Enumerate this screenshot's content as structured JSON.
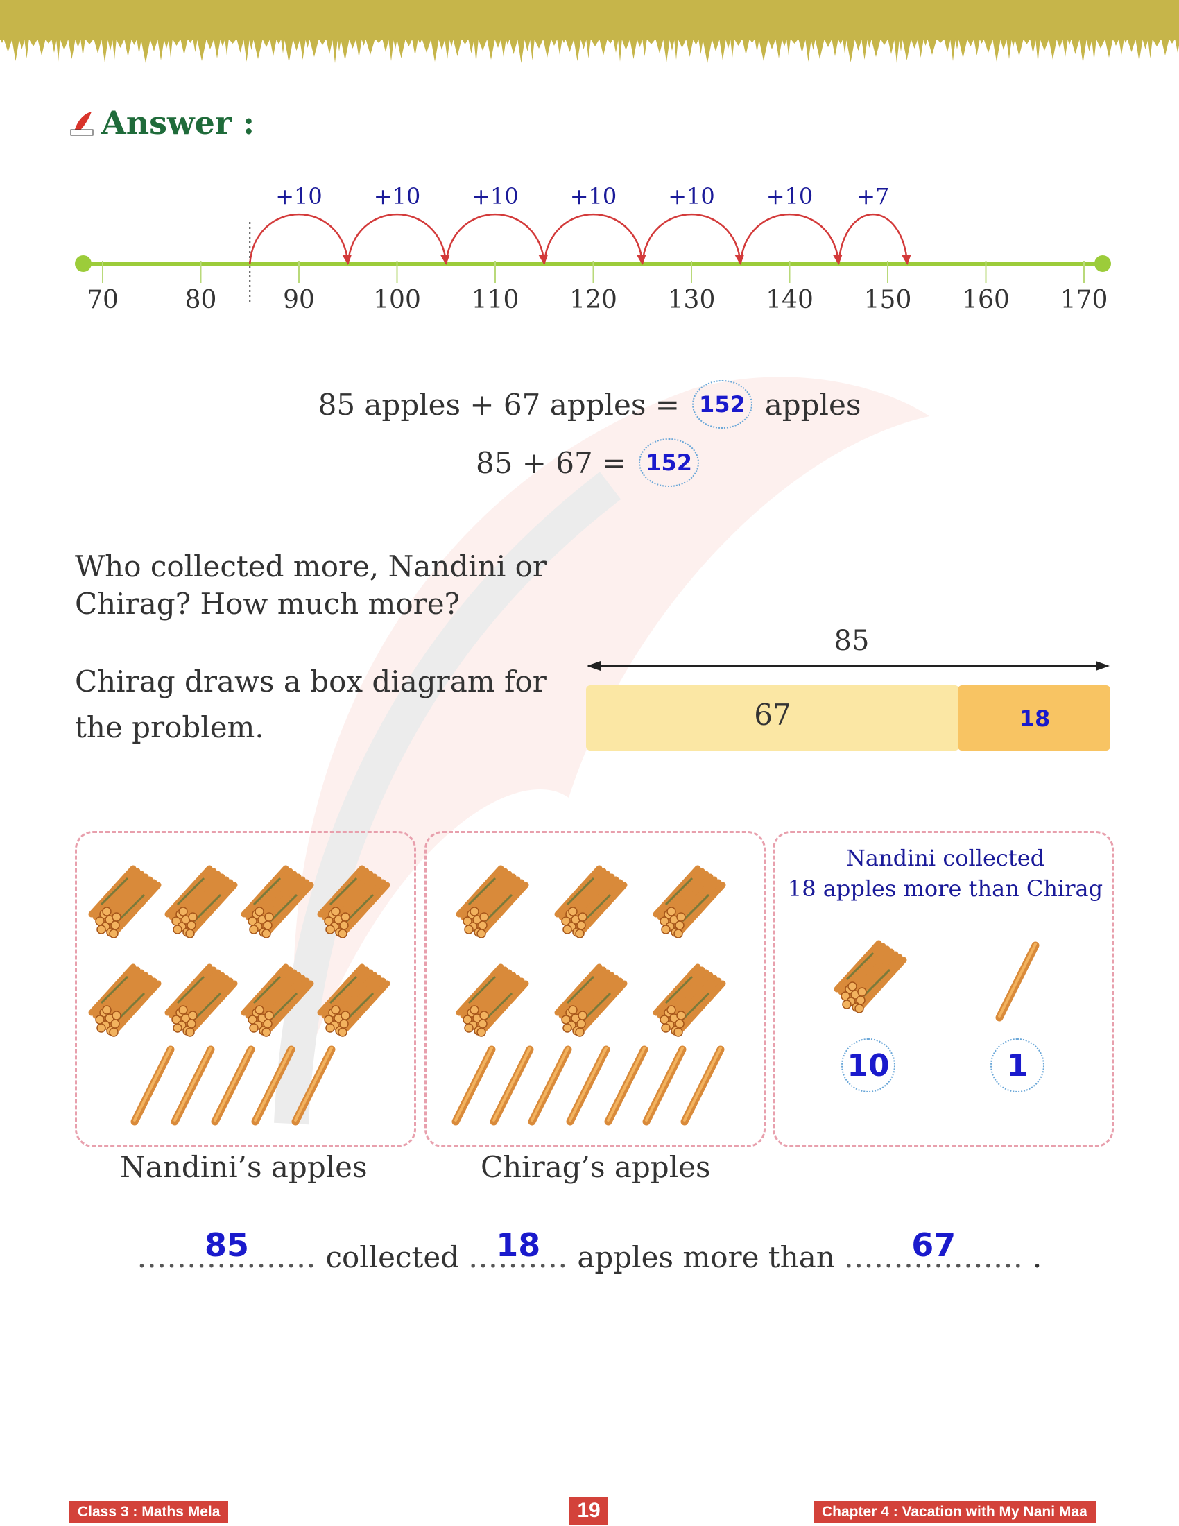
{
  "header": {
    "answer_label": "Answer :",
    "logo_icon": "pen-nib-icon"
  },
  "number_line": {
    "ticks": [
      "70",
      "80",
      "90",
      "100",
      "110",
      "120",
      "130",
      "140",
      "150",
      "160",
      "170"
    ],
    "jumps": [
      "+10",
      "+10",
      "+10",
      "+10",
      "+10",
      "+10",
      "+7"
    ],
    "start": 85,
    "end": 152
  },
  "equation1": {
    "left": "85 apples + 67 apples =",
    "answer": "152",
    "right": "apples"
  },
  "equation2": {
    "left": "85 + 67 =",
    "answer": "152"
  },
  "question": "Who collected more, Nandini or Chirag? How much more?",
  "box_intro": "Chirag draws a box diagram for the problem.",
  "box_diagram": {
    "total": "85",
    "part1": "67",
    "part2": "18"
  },
  "panels": {
    "nandini": {
      "caption": "Nandini’s apples",
      "bundles_of_ten": 8,
      "single_sticks": 5
    },
    "chirag": {
      "caption": "Chirag’s apples",
      "bundles_of_ten": 6,
      "single_sticks": 7
    },
    "difference": {
      "title_line1": "Nandini collected",
      "title_line2": "18 apples more than Chirag",
      "tens_count": "10",
      "ones_count": "1"
    }
  },
  "fill_sentence": {
    "blank1": "85",
    "word1": "collected",
    "blank2": "18",
    "word2": "apples more than",
    "blank3": "67",
    "end": "."
  },
  "footer": {
    "left": "Class 3 : Maths Mela",
    "page": "19",
    "right": "Chapter 4 : Vacation with My Nani Maa"
  },
  "colors": {
    "heading": "#1f6b3a",
    "answer_blue": "#1a1acc",
    "footer_red": "#d3423a",
    "line_green": "#9ccc3a",
    "arc_red": "#d33a3a",
    "box_light": "#fbe49a",
    "box_dark": "#f8bf5a"
  }
}
